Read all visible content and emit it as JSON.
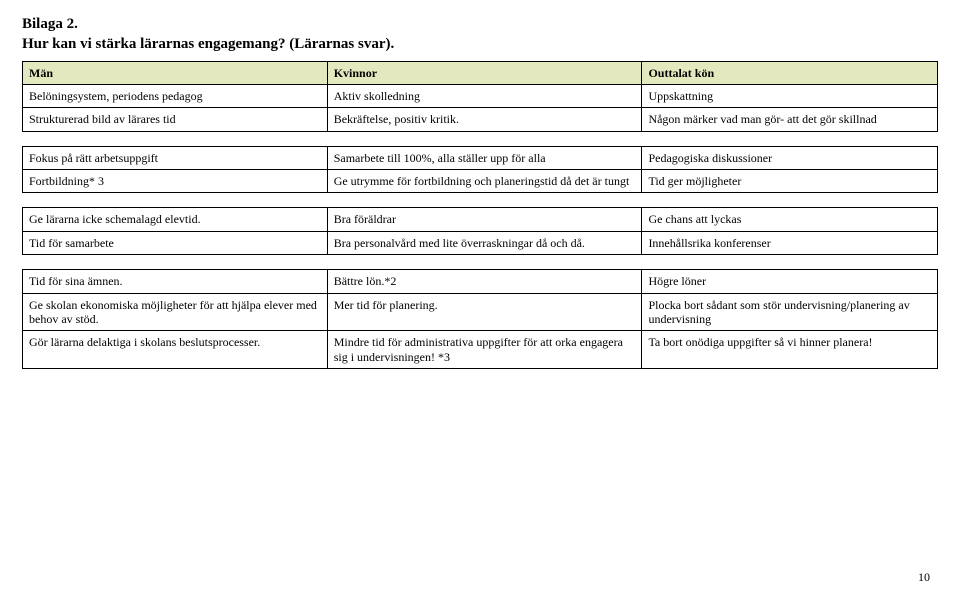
{
  "heading": {
    "line1": "Bilaga 2.",
    "line2": "Hur kan vi stärka lärarnas engagemang? (Lärarnas svar)."
  },
  "colors": {
    "header_bg": "#e3e8be",
    "border": "#000000",
    "text": "#000000",
    "page_bg": "#ffffff"
  },
  "columns": [
    "Män",
    "Kvinnor",
    "Outtalat kön"
  ],
  "block1": {
    "r1": [
      "Belöningsystem, periodens pedagog",
      "Aktiv skolledning",
      "Uppskattning"
    ],
    "r2": [
      "Strukturerad bild av lärares tid",
      "Bekräftelse, positiv kritik.",
      "Någon märker vad man gör- att det gör skillnad"
    ]
  },
  "block2": {
    "r1": [
      "Fokus på rätt arbetsuppgift",
      "Samarbete till 100%, alla ställer upp för alla",
      "Pedagogiska diskussioner"
    ],
    "r2": [
      "Fortbildning* 3",
      "Ge utrymme för fortbildning och planeringstid då det är tungt",
      "Tid ger möjligheter"
    ]
  },
  "block3": {
    "r1": [
      "Ge lärarna icke schemalagd elevtid.",
      "Bra föräldrar",
      "Ge chans att lyckas"
    ],
    "r2": [
      "Tid för samarbete",
      "Bra personalvård med lite överraskningar då och då.",
      "Innehållsrika konferenser"
    ]
  },
  "block4": {
    "r1": [
      "Tid för sina ämnen.",
      "Bättre lön.*2",
      "Högre löner"
    ],
    "r2": [
      "Ge skolan ekonomiska möjligheter för att hjälpa elever med behov av stöd.",
      "Mer tid för planering.",
      "Plocka bort sådant som stör undervisning/planering av undervisning"
    ],
    "r3": [
      "Gör lärarna delaktiga i skolans beslutsprocesser.",
      "Mindre tid för administrativa uppgifter för att orka engagera sig i undervisningen! *3",
      "Ta bort onödiga uppgifter så vi hinner planera!"
    ]
  },
  "page_number": "10"
}
